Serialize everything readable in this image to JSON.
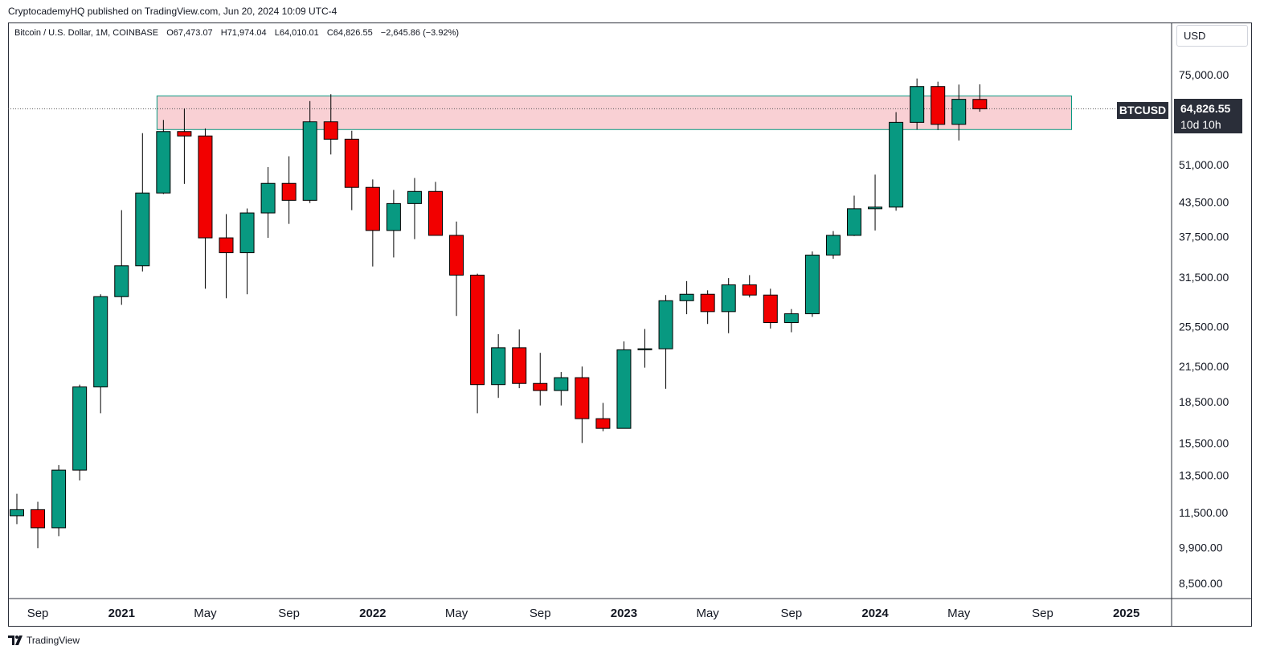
{
  "header": {
    "publisher_text": "CryptocademyHQ published on TradingView.com, Jun 20, 2024 10:09 UTC-4"
  },
  "legend": {
    "symbol": "Bitcoin / U.S. Dollar, 1M, COINBASE",
    "open": "O67,473.07",
    "high": "H71,974.04",
    "low": "L64,010.01",
    "close": "C64,826.55",
    "change": "−2,645.86 (−3.92%)"
  },
  "price_scale": {
    "currency": "USD",
    "current_price": "64,826.55",
    "countdown": "10d 10h",
    "symbol_tag": "BTCUSD"
  },
  "footer": {
    "brand": "TradingView"
  },
  "colors": {
    "up": "#089981",
    "down": "#f20000",
    "zone_fill": "#f8c8cc",
    "zone_border": "#089981",
    "axis": "#2a2e39",
    "text": "#131722"
  },
  "chart_data": {
    "type": "candlestick",
    "title": "Bitcoin / U.S. Dollar, 1M, COINBASE",
    "scale": "log",
    "ylim": [
      7700,
      92000
    ],
    "y_ticks": [
      75000,
      51000,
      43500,
      37500,
      31500,
      25500,
      21500,
      18500,
      15500,
      13500,
      11500,
      9900,
      8500
    ],
    "y_tick_labels": [
      "75,000.00",
      "51,000.00",
      "43,500.00",
      "37,500.00",
      "31,500.00",
      "25,500.00",
      "21,500.00",
      "18,500.00",
      "15,500.00",
      "13,500.00",
      "11,500.00",
      "9,900.00",
      "8,500.00"
    ],
    "x_ticks": [
      {
        "label": "Sep",
        "month": "2020-09",
        "bold": false
      },
      {
        "label": "2021",
        "month": "2021-01",
        "bold": true
      },
      {
        "label": "May",
        "month": "2021-05",
        "bold": false
      },
      {
        "label": "Sep",
        "month": "2021-09",
        "bold": false
      },
      {
        "label": "2022",
        "month": "2022-01",
        "bold": true
      },
      {
        "label": "May",
        "month": "2022-05",
        "bold": false
      },
      {
        "label": "Sep",
        "month": "2022-09",
        "bold": false
      },
      {
        "label": "2023",
        "month": "2023-01",
        "bold": true
      },
      {
        "label": "May",
        "month": "2023-05",
        "bold": false
      },
      {
        "label": "Sep",
        "month": "2023-09",
        "bold": false
      },
      {
        "label": "2024",
        "month": "2024-01",
        "bold": true
      },
      {
        "label": "May",
        "month": "2024-05",
        "bold": false
      },
      {
        "label": "Sep",
        "month": "2024-09",
        "bold": false
      },
      {
        "label": "2025",
        "month": "2025-01",
        "bold": true
      }
    ],
    "candles": [
      {
        "month": "2020-08",
        "o": 11350,
        "h": 12470,
        "l": 10950,
        "c": 11650
      },
      {
        "month": "2020-09",
        "o": 11650,
        "h": 12050,
        "l": 9880,
        "c": 10780
      },
      {
        "month": "2020-10",
        "o": 10780,
        "h": 14100,
        "l": 10400,
        "c": 13800
      },
      {
        "month": "2020-11",
        "o": 13800,
        "h": 19900,
        "l": 13200,
        "c": 19700
      },
      {
        "month": "2020-12",
        "o": 19700,
        "h": 29300,
        "l": 17600,
        "c": 29000
      },
      {
        "month": "2021-01",
        "o": 29000,
        "h": 42000,
        "l": 28000,
        "c": 33100
      },
      {
        "month": "2021-02",
        "o": 33100,
        "h": 58400,
        "l": 32300,
        "c": 45200
      },
      {
        "month": "2021-03",
        "o": 45200,
        "h": 61800,
        "l": 45000,
        "c": 58800
      },
      {
        "month": "2021-04",
        "o": 58800,
        "h": 64900,
        "l": 47000,
        "c": 57700
      },
      {
        "month": "2021-05",
        "o": 57700,
        "h": 59600,
        "l": 30000,
        "c": 37300
      },
      {
        "month": "2021-06",
        "o": 37300,
        "h": 41300,
        "l": 28800,
        "c": 35000
      },
      {
        "month": "2021-07",
        "o": 35000,
        "h": 42300,
        "l": 29300,
        "c": 41500
      },
      {
        "month": "2021-08",
        "o": 41500,
        "h": 50500,
        "l": 37300,
        "c": 47100
      },
      {
        "month": "2021-09",
        "o": 47100,
        "h": 52900,
        "l": 39600,
        "c": 43800
      },
      {
        "month": "2021-10",
        "o": 43800,
        "h": 67000,
        "l": 43300,
        "c": 61300
      },
      {
        "month": "2021-11",
        "o": 61300,
        "h": 69000,
        "l": 53300,
        "c": 56900
      },
      {
        "month": "2021-12",
        "o": 56900,
        "h": 59000,
        "l": 42000,
        "c": 46300
      },
      {
        "month": "2022-01",
        "o": 46300,
        "h": 47900,
        "l": 33000,
        "c": 38500
      },
      {
        "month": "2022-02",
        "o": 38500,
        "h": 45800,
        "l": 34300,
        "c": 43200
      },
      {
        "month": "2022-03",
        "o": 43200,
        "h": 48200,
        "l": 37100,
        "c": 45500
      },
      {
        "month": "2022-04",
        "o": 45500,
        "h": 47400,
        "l": 37700,
        "c": 37700
      },
      {
        "month": "2022-05",
        "o": 37700,
        "h": 40000,
        "l": 26700,
        "c": 31800
      },
      {
        "month": "2022-06",
        "o": 31800,
        "h": 32000,
        "l": 17600,
        "c": 19900
      },
      {
        "month": "2022-07",
        "o": 19900,
        "h": 24700,
        "l": 18800,
        "c": 23300
      },
      {
        "month": "2022-08",
        "o": 23300,
        "h": 25200,
        "l": 19600,
        "c": 20000
      },
      {
        "month": "2022-09",
        "o": 20000,
        "h": 22800,
        "l": 18200,
        "c": 19400
      },
      {
        "month": "2022-10",
        "o": 19400,
        "h": 21000,
        "l": 18200,
        "c": 20500
      },
      {
        "month": "2022-11",
        "o": 20500,
        "h": 21500,
        "l": 15500,
        "c": 17200
      },
      {
        "month": "2022-12",
        "o": 17200,
        "h": 18400,
        "l": 16300,
        "c": 16500
      },
      {
        "month": "2023-01",
        "o": 16500,
        "h": 23950,
        "l": 16500,
        "c": 23100
      },
      {
        "month": "2023-02",
        "o": 23100,
        "h": 25250,
        "l": 21400,
        "c": 23200
      },
      {
        "month": "2023-03",
        "o": 23200,
        "h": 29200,
        "l": 19550,
        "c": 28500
      },
      {
        "month": "2023-04",
        "o": 28500,
        "h": 31000,
        "l": 26900,
        "c": 29300
      },
      {
        "month": "2023-05",
        "o": 29300,
        "h": 29800,
        "l": 25800,
        "c": 27200
      },
      {
        "month": "2023-06",
        "o": 27200,
        "h": 31400,
        "l": 24800,
        "c": 30500
      },
      {
        "month": "2023-07",
        "o": 30500,
        "h": 31800,
        "l": 28900,
        "c": 29200
      },
      {
        "month": "2023-08",
        "o": 29200,
        "h": 30000,
        "l": 25300,
        "c": 25950
      },
      {
        "month": "2023-09",
        "o": 25950,
        "h": 27500,
        "l": 24900,
        "c": 26950
      },
      {
        "month": "2023-10",
        "o": 26950,
        "h": 35200,
        "l": 26600,
        "c": 34650
      },
      {
        "month": "2023-11",
        "o": 34650,
        "h": 38400,
        "l": 34100,
        "c": 37700
      },
      {
        "month": "2023-12",
        "o": 37700,
        "h": 44700,
        "l": 37600,
        "c": 42250
      },
      {
        "month": "2024-01",
        "o": 42250,
        "h": 48900,
        "l": 38500,
        "c": 42550
      },
      {
        "month": "2024-02",
        "o": 42550,
        "h": 63900,
        "l": 41900,
        "c": 61150
      },
      {
        "month": "2024-03",
        "o": 61150,
        "h": 73800,
        "l": 59300,
        "c": 71300
      },
      {
        "month": "2024-04",
        "o": 71300,
        "h": 72800,
        "l": 59200,
        "c": 60650
      },
      {
        "month": "2024-05",
        "o": 60650,
        "h": 71900,
        "l": 56600,
        "c": 67500
      },
      {
        "month": "2024-06",
        "o": 67473.07,
        "h": 71974.04,
        "l": 64010.01,
        "c": 64826.55
      }
    ],
    "zone": {
      "from_month": "2021-03",
      "to_month": "2024-10",
      "low": 59300,
      "high": 68500
    },
    "current_price": 64826.55,
    "grid": false
  }
}
